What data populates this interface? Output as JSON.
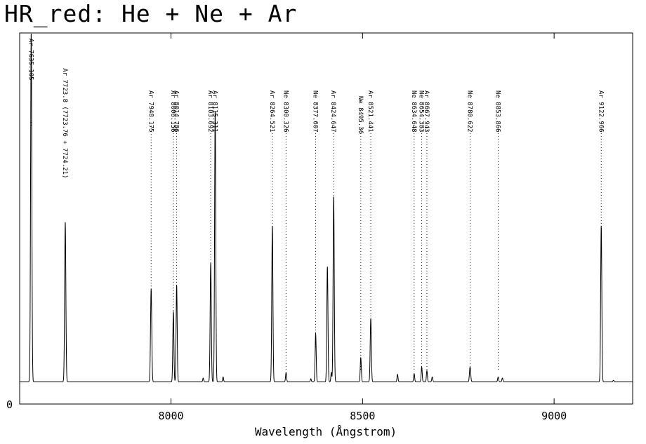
{
  "chart_data": {
    "type": "line",
    "title": "HR_red: He + Ne + Ar",
    "xlabel": "Wavelength (Ångstrom)",
    "ylabel": "",
    "xlim": [
      7605,
      9205
    ],
    "ylim": [
      0,
      1.0
    ],
    "x_ticks": [
      8000,
      8500,
      9000
    ],
    "y_ticks": [
      0
    ],
    "baseline": 0.06,
    "grid": false,
    "spectrum_peaks": [
      {
        "x": 7635.105,
        "y": 0.94,
        "w": 1.6
      },
      {
        "x": 7724.0,
        "y": 0.43,
        "w": 1.6
      },
      {
        "x": 7948.175,
        "y": 0.25,
        "w": 1.6
      },
      {
        "x": 8006.156,
        "y": 0.19,
        "w": 1.4
      },
      {
        "x": 8014.786,
        "y": 0.26,
        "w": 1.4
      },
      {
        "x": 8084.0,
        "y": 0.01,
        "w": 1.2
      },
      {
        "x": 8103.692,
        "y": 0.32,
        "w": 1.5
      },
      {
        "x": 8115.311,
        "y": 0.73,
        "w": 1.5
      },
      {
        "x": 8136.0,
        "y": 0.013,
        "w": 1.2
      },
      {
        "x": 8264.521,
        "y": 0.42,
        "w": 1.5
      },
      {
        "x": 8300.326,
        "y": 0.025,
        "w": 1.3
      },
      {
        "x": 8365.0,
        "y": 0.008,
        "w": 1.2
      },
      {
        "x": 8377.607,
        "y": 0.13,
        "w": 1.4
      },
      {
        "x": 8408.21,
        "y": 0.31,
        "w": 1.5
      },
      {
        "x": 8418.43,
        "y": 0.025,
        "w": 1.2
      },
      {
        "x": 8424.647,
        "y": 0.5,
        "w": 1.5
      },
      {
        "x": 8495.36,
        "y": 0.065,
        "w": 1.4
      },
      {
        "x": 8521.441,
        "y": 0.17,
        "w": 1.5
      },
      {
        "x": 8591.26,
        "y": 0.02,
        "w": 1.3
      },
      {
        "x": 8634.648,
        "y": 0.022,
        "w": 1.3
      },
      {
        "x": 8654.383,
        "y": 0.04,
        "w": 1.3
      },
      {
        "x": 8667.943,
        "y": 0.03,
        "w": 1.3
      },
      {
        "x": 8681.92,
        "y": 0.013,
        "w": 1.3
      },
      {
        "x": 8780.622,
        "y": 0.04,
        "w": 1.6
      },
      {
        "x": 8853.866,
        "y": 0.013,
        "w": 1.3
      },
      {
        "x": 8865.0,
        "y": 0.01,
        "w": 1.3
      },
      {
        "x": 9122.966,
        "y": 0.42,
        "w": 1.5
      },
      {
        "x": 9155.0,
        "y": 0.004,
        "w": 1.3
      }
    ],
    "line_ids": [
      {
        "x": 7635.105,
        "label": "Ar 7635.105",
        "text_top": 0.985,
        "line_top": 0.76,
        "line_bottom": 0.75
      },
      {
        "x": 7724.0,
        "label": "Ar 7723.8 (7723.76 + 7724.21)",
        "text_top": 0.905,
        "line_top": 0.46,
        "line_bottom": 0.405
      },
      {
        "x": 7948.175,
        "label": "Ar 7948.175",
        "text_top": 0.845,
        "line_top": 0.75,
        "line_bottom": 0.27
      },
      {
        "x": 8006.156,
        "label": "Ar 8006.156",
        "text_top": 0.845,
        "line_top": 0.745,
        "line_bottom": 0.205
      },
      {
        "x": 8014.786,
        "label": "Ar 8014.786",
        "text_top": 0.845,
        "line_top": 0.745,
        "line_bottom": 0.275
      },
      {
        "x": 8103.692,
        "label": "Ar 8103.692",
        "text_top": 0.845,
        "line_top": 0.745,
        "line_bottom": 0.34
      },
      {
        "x": 8115.311,
        "label": "Ar 8115.311",
        "text_top": 0.845,
        "line_top": 0.745,
        "line_bottom": 0.745
      },
      {
        "x": 8264.521,
        "label": "Ar 8264.521",
        "text_top": 0.845,
        "line_top": 0.745,
        "line_bottom": 0.43
      },
      {
        "x": 8300.326,
        "label": "Ne 8300.326",
        "text_top": 0.845,
        "line_top": 0.745,
        "line_bottom": 0.09
      },
      {
        "x": 8377.607,
        "label": "Ne 8377.607",
        "text_top": 0.845,
        "line_top": 0.745,
        "line_bottom": 0.15
      },
      {
        "x": 8424.647,
        "label": "Ar 8424.647",
        "text_top": 0.845,
        "line_top": 0.745,
        "line_bottom": 0.52
      },
      {
        "x": 8495.36,
        "label": "Ne 8495.36",
        "text_top": 0.83,
        "line_top": 0.745,
        "line_bottom": 0.09
      },
      {
        "x": 8521.441,
        "label": "Ar 8521.441",
        "text_top": 0.845,
        "line_top": 0.745,
        "line_bottom": 0.19
      },
      {
        "x": 8634.648,
        "label": "Ne 8634.648",
        "text_top": 0.845,
        "line_top": 0.745,
        "line_bottom": 0.09
      },
      {
        "x": 8654.383,
        "label": "Ne 8654.383",
        "text_top": 0.845,
        "line_top": 0.745,
        "line_bottom": 0.09
      },
      {
        "x": 8667.943,
        "label": "Ar 8667.943",
        "text_top": 0.845,
        "line_top": 0.745,
        "line_bottom": 0.09
      },
      {
        "x": 8780.622,
        "label": "Ne 8780.622",
        "text_top": 0.845,
        "line_top": 0.745,
        "line_bottom": 0.09
      },
      {
        "x": 8853.866,
        "label": "Ne 8853.866",
        "text_top": 0.845,
        "line_top": 0.745,
        "line_bottom": 0.09
      },
      {
        "x": 9122.966,
        "label": "Ar 9122.966",
        "text_top": 0.845,
        "line_top": 0.745,
        "line_bottom": 0.43
      }
    ]
  }
}
